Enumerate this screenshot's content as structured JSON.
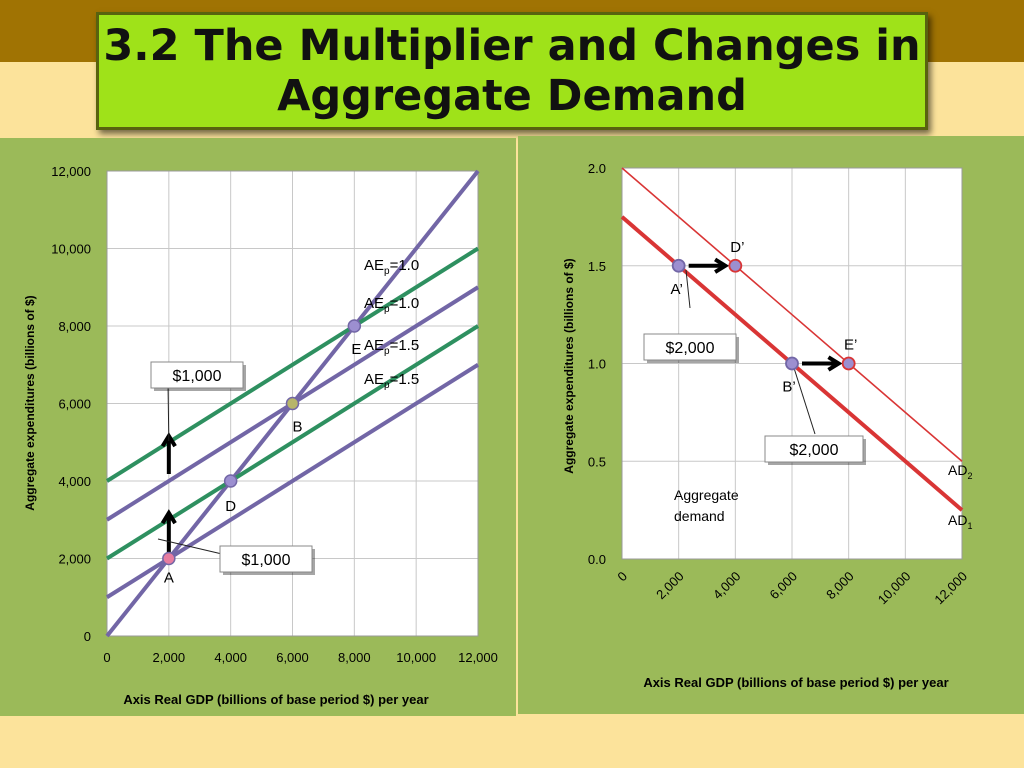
{
  "slide": {
    "title": "3.2 The Multiplier and Changes in Aggregate Demand"
  },
  "colors": {
    "band": "#A07303",
    "slide_bg": "#FCE39B",
    "title_bg": "#9FE219",
    "panel_bg": "#9BBA59",
    "purple_line": "#7266A6",
    "green_line": "#2E9060",
    "red_line": "#D93535",
    "point_fill": "#9C8FD0"
  },
  "chart_data": [
    {
      "type": "line",
      "xlabel": "Axis Real GDP (billions of base period $) per year",
      "ylabel": "Aggregate expenditures (billions of $)",
      "xlim": [
        0,
        12000
      ],
      "ylim": [
        0,
        12000
      ],
      "x_ticks": [
        "0",
        "2,000",
        "4,000",
        "6,000",
        "8,000",
        "10,000",
        "12,000"
      ],
      "y_ticks": [
        "0",
        "2,000",
        "4,000",
        "6,000",
        "8,000",
        "10,000",
        "12,000"
      ],
      "grid": true,
      "series": [
        {
          "color": "purple",
          "x": [
            0,
            12000
          ],
          "y": [
            0,
            12000
          ]
        },
        {
          "color": "green",
          "x": [
            0,
            12000
          ],
          "y": [
            4000,
            10000
          ]
        },
        {
          "color": "purple",
          "x": [
            0,
            12000
          ],
          "y": [
            3000,
            9000
          ]
        },
        {
          "color": "green",
          "x": [
            0,
            12000
          ],
          "y": [
            2000,
            8000
          ]
        },
        {
          "color": "purple",
          "x": [
            0,
            12000
          ],
          "y": [
            1000,
            7000
          ]
        }
      ],
      "line_labels": [
        {
          "base": "AE",
          "sub": "p",
          "rest": "=1.0"
        },
        {
          "base": "AE",
          "sub": "p",
          "rest": "=1.0"
        },
        {
          "base": "AE",
          "sub": "p",
          "rest": "=1.5"
        },
        {
          "base": "AE",
          "sub": "p",
          "rest": "=1.5"
        }
      ],
      "points": [
        {
          "label": "A",
          "x": 2000,
          "y": 2000,
          "fill": "#E77CA0"
        },
        {
          "label": "D",
          "x": 4000,
          "y": 4000,
          "fill": "#9C8FD0"
        },
        {
          "label": "B",
          "x": 6000,
          "y": 6000,
          "fill": "#B7B56A"
        },
        {
          "label": "E",
          "x": 8000,
          "y": 8000,
          "fill": "#9C8FD0"
        }
      ],
      "callouts": [
        "$1,000",
        "$1,000"
      ]
    },
    {
      "type": "line",
      "xlabel": "Axis Real GDP (billions of base period $) per year",
      "ylabel": "Aggregate expenditures (billions of $)",
      "xlim": [
        0,
        12000
      ],
      "ylim": [
        0,
        2.0
      ],
      "x_ticks": [
        "0",
        "2,000",
        "4,000",
        "6,000",
        "8,000",
        "10,000",
        "12,000"
      ],
      "y_ticks": [
        "0.0",
        "0.5",
        "1.0",
        "1.5",
        "2.0"
      ],
      "grid": true,
      "series": [
        {
          "name": "AD1",
          "x": [
            0,
            12000
          ],
          "y": [
            1.75,
            0.25
          ]
        },
        {
          "name": "AD2",
          "x": [
            0,
            12000
          ],
          "y": [
            2.0,
            0.5
          ]
        }
      ],
      "series_labels": [
        {
          "base": "AD",
          "sub": "2"
        },
        {
          "base": "AD",
          "sub": "1"
        }
      ],
      "points": [
        {
          "label": "A’",
          "x": 2000,
          "y": 1.5
        },
        {
          "label": "D’",
          "x": 4000,
          "y": 1.5
        },
        {
          "label": "B’",
          "x": 6000,
          "y": 1.0
        },
        {
          "label": "E’",
          "x": 8000,
          "y": 1.0
        }
      ],
      "callouts": [
        "$2,000",
        "$2,000"
      ],
      "annotation": [
        "Aggregate",
        "demand"
      ]
    }
  ]
}
